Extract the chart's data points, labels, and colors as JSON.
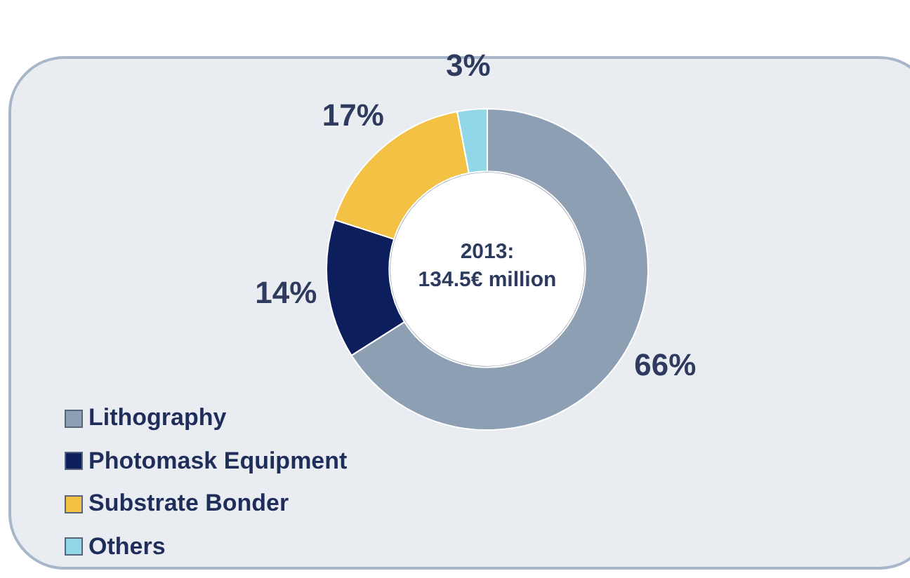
{
  "chart_data": {
    "type": "donut",
    "categories": [
      "Lithography",
      "Photomask Equipment",
      "Substrate Bonder",
      "Others"
    ],
    "values": [
      66,
      14,
      17,
      3
    ],
    "colors": [
      "#8c9fb3",
      "#0c1e5b",
      "#f3c244",
      "#92d7e8"
    ],
    "value_labels": [
      "66%",
      "14%",
      "17%",
      "3%"
    ],
    "annotations": [
      "2013:\n134.5€ million"
    ],
    "legend": "bottom left"
  }
}
